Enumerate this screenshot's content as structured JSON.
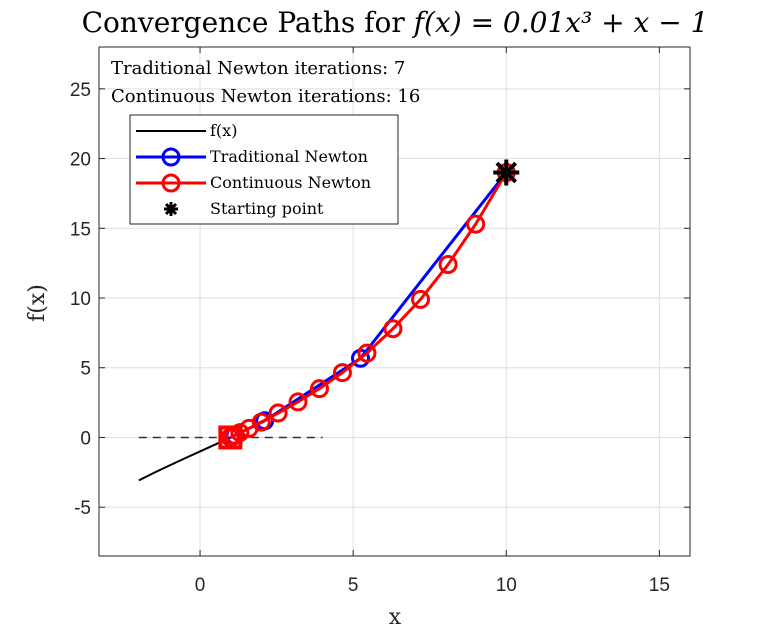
{
  "chart_data": {
    "type": "line",
    "title_prefix": "Convergence Paths for ",
    "title_math": "f(x) = 0.01x³ + x − 1",
    "xlabel": "x",
    "ylabel": "f(x)",
    "xlim": [
      -3.3,
      16
    ],
    "ylim": [
      -8.5,
      28
    ],
    "xticks": [
      0,
      5,
      10,
      15
    ],
    "yticks": [
      -5,
      0,
      5,
      10,
      15,
      20,
      25
    ],
    "grid": true,
    "legend_position": "upper-left",
    "annotations": [
      "Traditional Newton iterations: 7",
      "Continuous Newton iterations: 16"
    ],
    "series": [
      {
        "name": "f(x)",
        "color": "#000000",
        "marker": "none",
        "x": [
          -2,
          -1.5,
          -1,
          -0.5,
          0,
          0.5,
          1
        ],
        "y": [
          -3.08,
          -2.53,
          -2.01,
          -1.5,
          -1.0,
          -0.5,
          0.01
        ]
      },
      {
        "name": "Traditional Newton",
        "color": "#0000ff",
        "marker": "circle",
        "x": [
          10,
          5.24,
          2.11,
          1.14,
          1.01,
          1.0,
          0.99
        ],
        "y": [
          19,
          5.68,
          1.2,
          0.15,
          0.01,
          0.0,
          0.0
        ]
      },
      {
        "name": "Continuous Newton",
        "color": "#ff0000",
        "marker": "circle",
        "x": [
          10,
          9.0,
          8.1,
          7.2,
          6.3,
          5.45,
          4.65,
          3.9,
          3.2,
          2.55,
          2.0,
          1.6,
          1.3,
          1.12,
          1.04,
          0.99
        ],
        "y": [
          19,
          15.3,
          12.4,
          9.9,
          7.8,
          6.05,
          4.65,
          3.5,
          2.55,
          1.75,
          1.1,
          0.65,
          0.35,
          0.15,
          0.05,
          0.0
        ]
      },
      {
        "name": "Starting point",
        "color": "#000000",
        "marker": "asterisk",
        "x": [
          10
        ],
        "y": [
          19
        ]
      }
    ],
    "root_marker": {
      "x": 0.99,
      "y": 0.0,
      "color": "#ff0000",
      "marker": "square"
    },
    "zero_line": {
      "x": [
        -2,
        4
      ],
      "y": 0,
      "color": "#333333",
      "style": "dashed"
    }
  }
}
